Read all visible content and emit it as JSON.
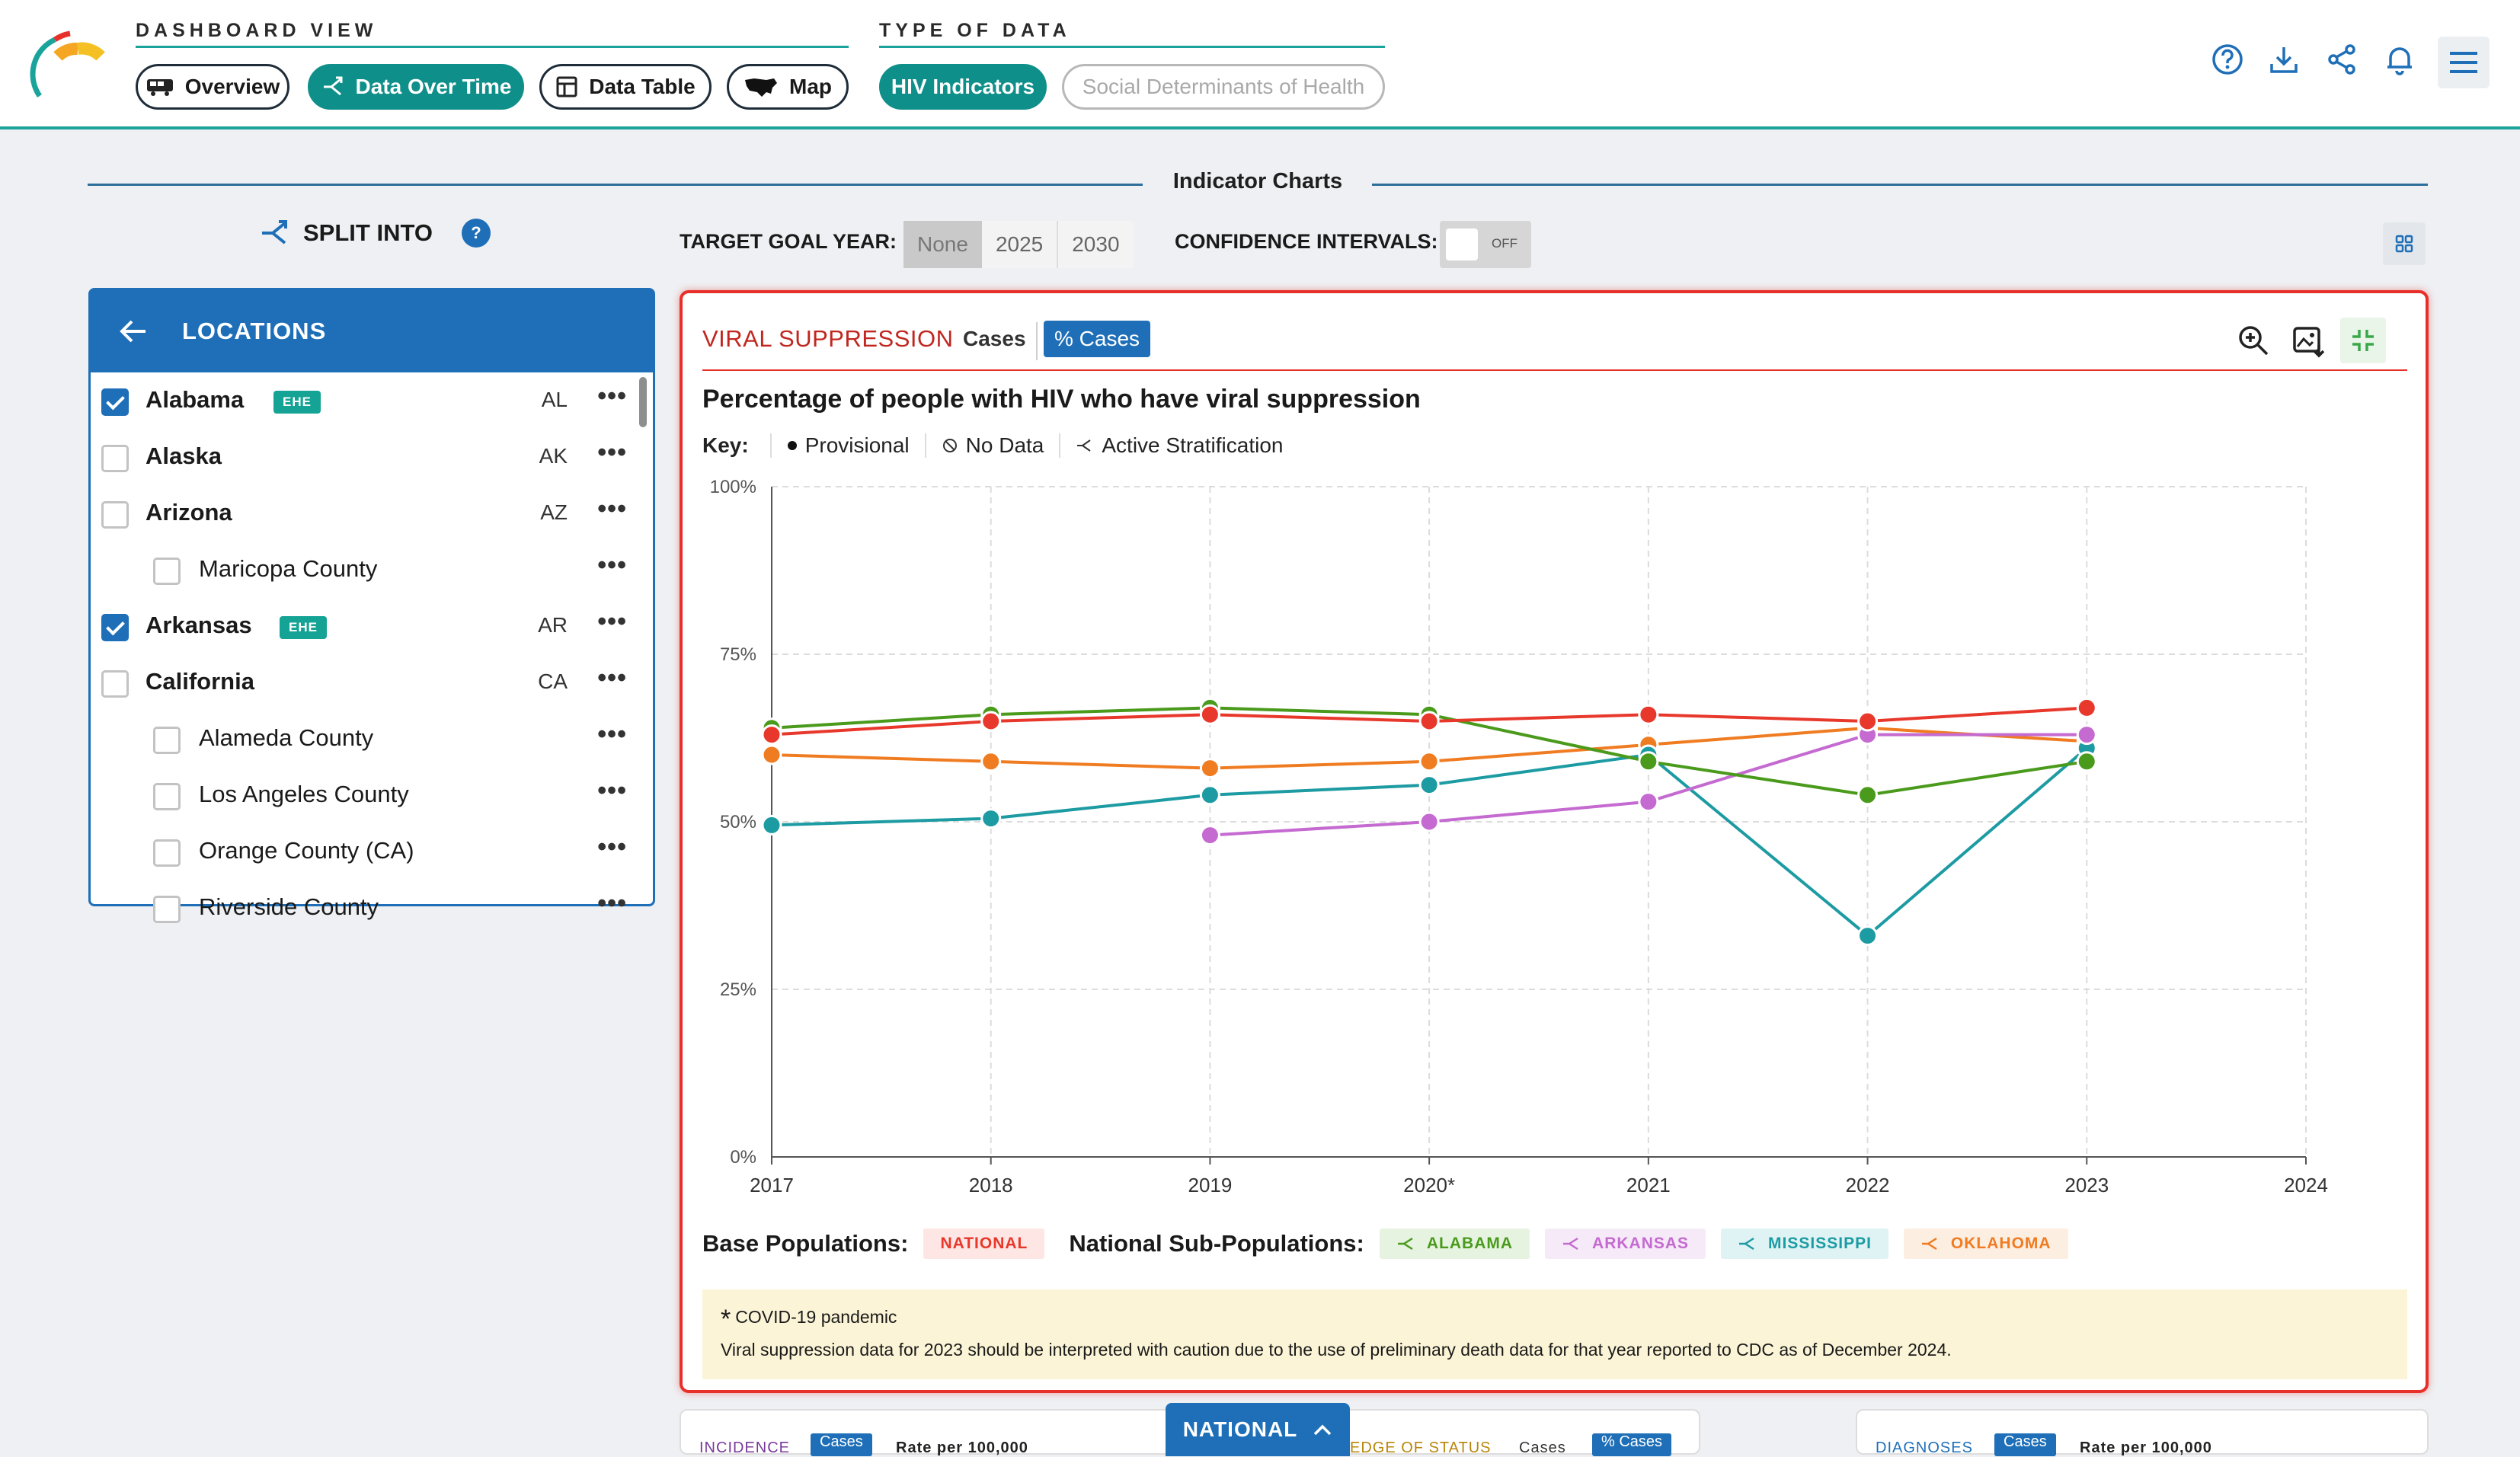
{
  "header": {
    "dashboard_view_label": "DASHBOARD VIEW",
    "type_of_data_label": "TYPE OF DATA",
    "views": [
      {
        "label": "Overview",
        "icon": "bus-icon"
      },
      {
        "label": "Data Over Time",
        "icon": "split-icon"
      },
      {
        "label": "Data Table",
        "icon": "table-icon"
      },
      {
        "label": "Map",
        "icon": "us-map-icon"
      }
    ],
    "active_view": "Data Over Time",
    "data_types": [
      {
        "label": "HIV Indicators"
      },
      {
        "label": "Social Determinants of Health"
      }
    ],
    "right_icons": [
      "help-icon",
      "download-icon",
      "share-icon",
      "bell-icon",
      "menu-icon"
    ]
  },
  "section_title": "Indicator Charts",
  "split_into": {
    "label": "SPLIT INTO",
    "help": "?"
  },
  "locations": {
    "title": "LOCATIONS",
    "items": [
      {
        "name": "Alabama",
        "abbr": "AL",
        "checked": true,
        "ehe": "EHE",
        "level": "state"
      },
      {
        "name": "Alaska",
        "abbr": "AK",
        "checked": false,
        "ehe": "",
        "level": "state"
      },
      {
        "name": "Arizona",
        "abbr": "AZ",
        "checked": false,
        "ehe": "",
        "level": "state"
      },
      {
        "name": "Maricopa County",
        "abbr": "",
        "checked": false,
        "ehe": "",
        "level": "county"
      },
      {
        "name": "Arkansas",
        "abbr": "AR",
        "checked": true,
        "ehe": "EHE",
        "level": "state"
      },
      {
        "name": "California",
        "abbr": "CA",
        "checked": false,
        "ehe": "",
        "level": "state"
      },
      {
        "name": "Alameda County",
        "abbr": "",
        "checked": false,
        "ehe": "",
        "level": "county"
      },
      {
        "name": "Los Angeles County",
        "abbr": "",
        "checked": false,
        "ehe": "",
        "level": "county"
      },
      {
        "name": "Orange County (CA)",
        "abbr": "",
        "checked": false,
        "ehe": "",
        "level": "county"
      },
      {
        "name": "Riverside County",
        "abbr": "",
        "checked": false,
        "ehe": "",
        "level": "county"
      }
    ],
    "row_menu": "•••"
  },
  "controls": {
    "target_goal_label": "TARGET GOAL YEAR:",
    "target_goal_options": [
      "None",
      "2025",
      "2030"
    ],
    "target_goal_selected": "None",
    "confidence_label": "CONFIDENCE INTERVALS:",
    "confidence_state": "OFF"
  },
  "card": {
    "title": "VIRAL SUPPRESSION",
    "tab_cases": "Cases",
    "tab_pct": "% Cases",
    "heading": "Percentage of people with HIV who have viral suppression",
    "key_label": "Key:",
    "key_items": [
      "Provisional",
      "No Data",
      "Active Stratification"
    ],
    "base_populations_label": "Base Populations:",
    "base_chip": "NATIONAL",
    "sub_populations_label": "National Sub-Populations:",
    "sub_chips": [
      {
        "label": "ALABAMA",
        "color": "#4a9a1c",
        "bg": "#e7f3e1"
      },
      {
        "label": "ARKANSAS",
        "color": "#c46ad0",
        "bg": "#f6eaf8"
      },
      {
        "label": "MISSISSIPPI",
        "color": "#1d9ba3",
        "bg": "#e0f3f4"
      },
      {
        "label": "OKLAHOMA",
        "color": "#f07c22",
        "bg": "#fdeee2"
      }
    ],
    "note_star": "*",
    "note_line1": "COVID-19 pandemic",
    "note_line2": "Viral suppression data for 2023 should be interpreted with caution due to the use of preliminary death data for that year reported to CDC as of December 2024."
  },
  "chart_data": {
    "type": "line",
    "x": [
      "2017",
      "2018",
      "2019",
      "2020*",
      "2021",
      "2022",
      "2023",
      "2024"
    ],
    "ylim": [
      0,
      100
    ],
    "yticks": [
      "0%",
      "25%",
      "50%",
      "75%",
      "100%"
    ],
    "series": [
      {
        "name": "NATIONAL",
        "color": "#e8382c",
        "values": [
          63,
          65,
          66,
          65,
          66,
          65,
          67,
          null
        ]
      },
      {
        "name": "ALABAMA",
        "color": "#4a9a1c",
        "values": [
          64,
          66,
          67,
          66,
          59,
          54,
          59,
          null
        ]
      },
      {
        "name": "ARKANSAS",
        "color": "#c46ad0",
        "values": [
          null,
          null,
          48,
          50,
          53,
          63,
          63,
          null
        ]
      },
      {
        "name": "MISSISSIPPI",
        "color": "#1d9ba3",
        "values": [
          49.5,
          50.5,
          54,
          55.5,
          60,
          33,
          61,
          null
        ]
      },
      {
        "name": "OKLAHOMA",
        "color": "#f07c22",
        "values": [
          60,
          59,
          58,
          59,
          61.5,
          64,
          62,
          null
        ]
      }
    ]
  },
  "bottom": {
    "national_tab": "NATIONAL",
    "left_card_title": "INCIDENCE",
    "left_card_tab": "Cases",
    "left_card_rate": "Rate per 100,000",
    "mid_card_title": "EDGE OF STATUS",
    "mid_card_cases": "Cases",
    "mid_card_tab": "% Cases",
    "right_card_title": "DIAGNOSES",
    "right_card_tab": "Cases",
    "right_card_rate": "Rate per 100,000"
  }
}
